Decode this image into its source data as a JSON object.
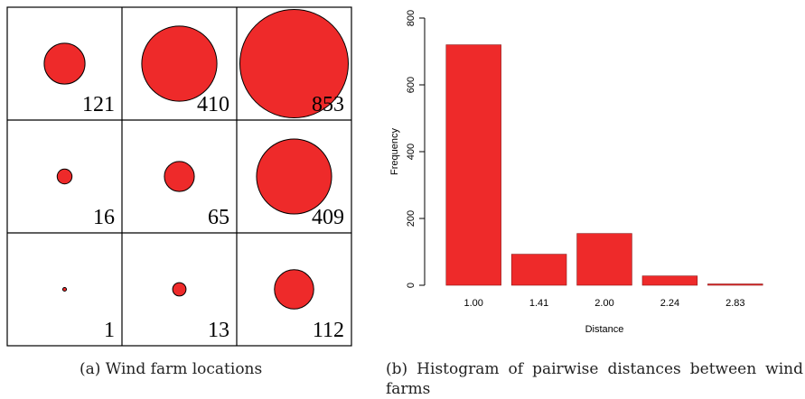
{
  "colors": {
    "fill": "#ee2a2a",
    "stroke": "#000000",
    "bar": "#ee2a2a"
  },
  "captions": {
    "a": "(a) Wind farm locations",
    "b": "(b) Histogram of pairwise distances between wind farms"
  },
  "chart_data": [
    {
      "type": "bubble-grid",
      "rows": 3,
      "cols": 3,
      "values": [
        [
          121,
          410,
          853
        ],
        [
          16,
          65,
          409
        ],
        [
          1,
          13,
          112
        ]
      ]
    },
    {
      "type": "bar",
      "categories": [
        "1.00",
        "1.41",
        "2.00",
        "2.24",
        "2.83"
      ],
      "values": [
        720,
        93,
        155,
        28,
        4
      ],
      "xlabel": "Distance",
      "ylabel": "Frequency",
      "ylim": [
        0,
        800
      ],
      "yticks": [
        0,
        200,
        400,
        600,
        800
      ],
      "grid": false,
      "legend": "none"
    }
  ]
}
